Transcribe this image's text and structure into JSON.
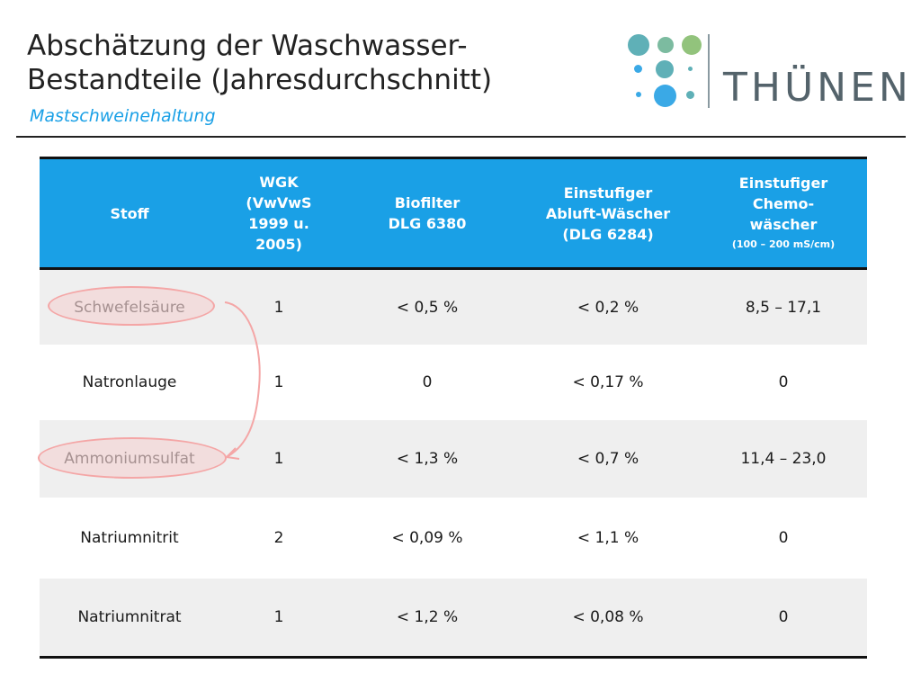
{
  "header": {
    "title_line1": "Abschätzung der Waschwasser-",
    "title_line2": "Bestandteile (Jahresdurchschnitt)",
    "subtitle": "Mastschweinehaltung"
  },
  "logo": {
    "text": "THÜNEN",
    "colors": {
      "teal": "#5fb0b7",
      "green": "#92c37c",
      "blue": "#3aa9e6",
      "bar": "#8a9aa1",
      "text": "#54636b"
    }
  },
  "table": {
    "headers": [
      {
        "lines": [
          "Stoff"
        ]
      },
      {
        "lines": [
          "WGK",
          "(VwVwS",
          "1999 u.",
          "2005)"
        ]
      },
      {
        "lines": [
          "Biofilter",
          "DLG 6380"
        ]
      },
      {
        "lines": [
          "Einstufiger",
          "Abluft-Wäscher",
          "(DLG 6284)"
        ]
      },
      {
        "lines": [
          "Einstufiger",
          "Chemo-",
          "wäscher"
        ],
        "note": "(100 – 200 mS/cm)"
      }
    ],
    "rows": [
      {
        "stoff": "Schwefelsäure",
        "wgk": "1",
        "biofilter": "< 0,5 %",
        "abluft": "< 0,2 %",
        "chemo": "8,5 – 17,1"
      },
      {
        "stoff": "Natronlauge",
        "wgk": "1",
        "biofilter": "0",
        "abluft": "< 0,17 %",
        "chemo": "0"
      },
      {
        "stoff": "Ammoniumsulfat",
        "wgk": "1",
        "biofilter": "< 1,3 %",
        "abluft": "< 0,7 %",
        "chemo": "11,4 – 23,0"
      },
      {
        "stoff": "Natriumnitrit",
        "wgk": "2",
        "biofilter": "< 0,09 %",
        "abluft": "< 1,1 %",
        "chemo": "0"
      },
      {
        "stoff": "Natriumnitrat",
        "wgk": "1",
        "biofilter": "< 1,2 %",
        "abluft": "< 0,08 %",
        "chemo": "0"
      }
    ],
    "colors": {
      "header_bg": "#1aa0e6",
      "row_alt": "#efefef",
      "highlight": "#f4a6a6"
    }
  }
}
